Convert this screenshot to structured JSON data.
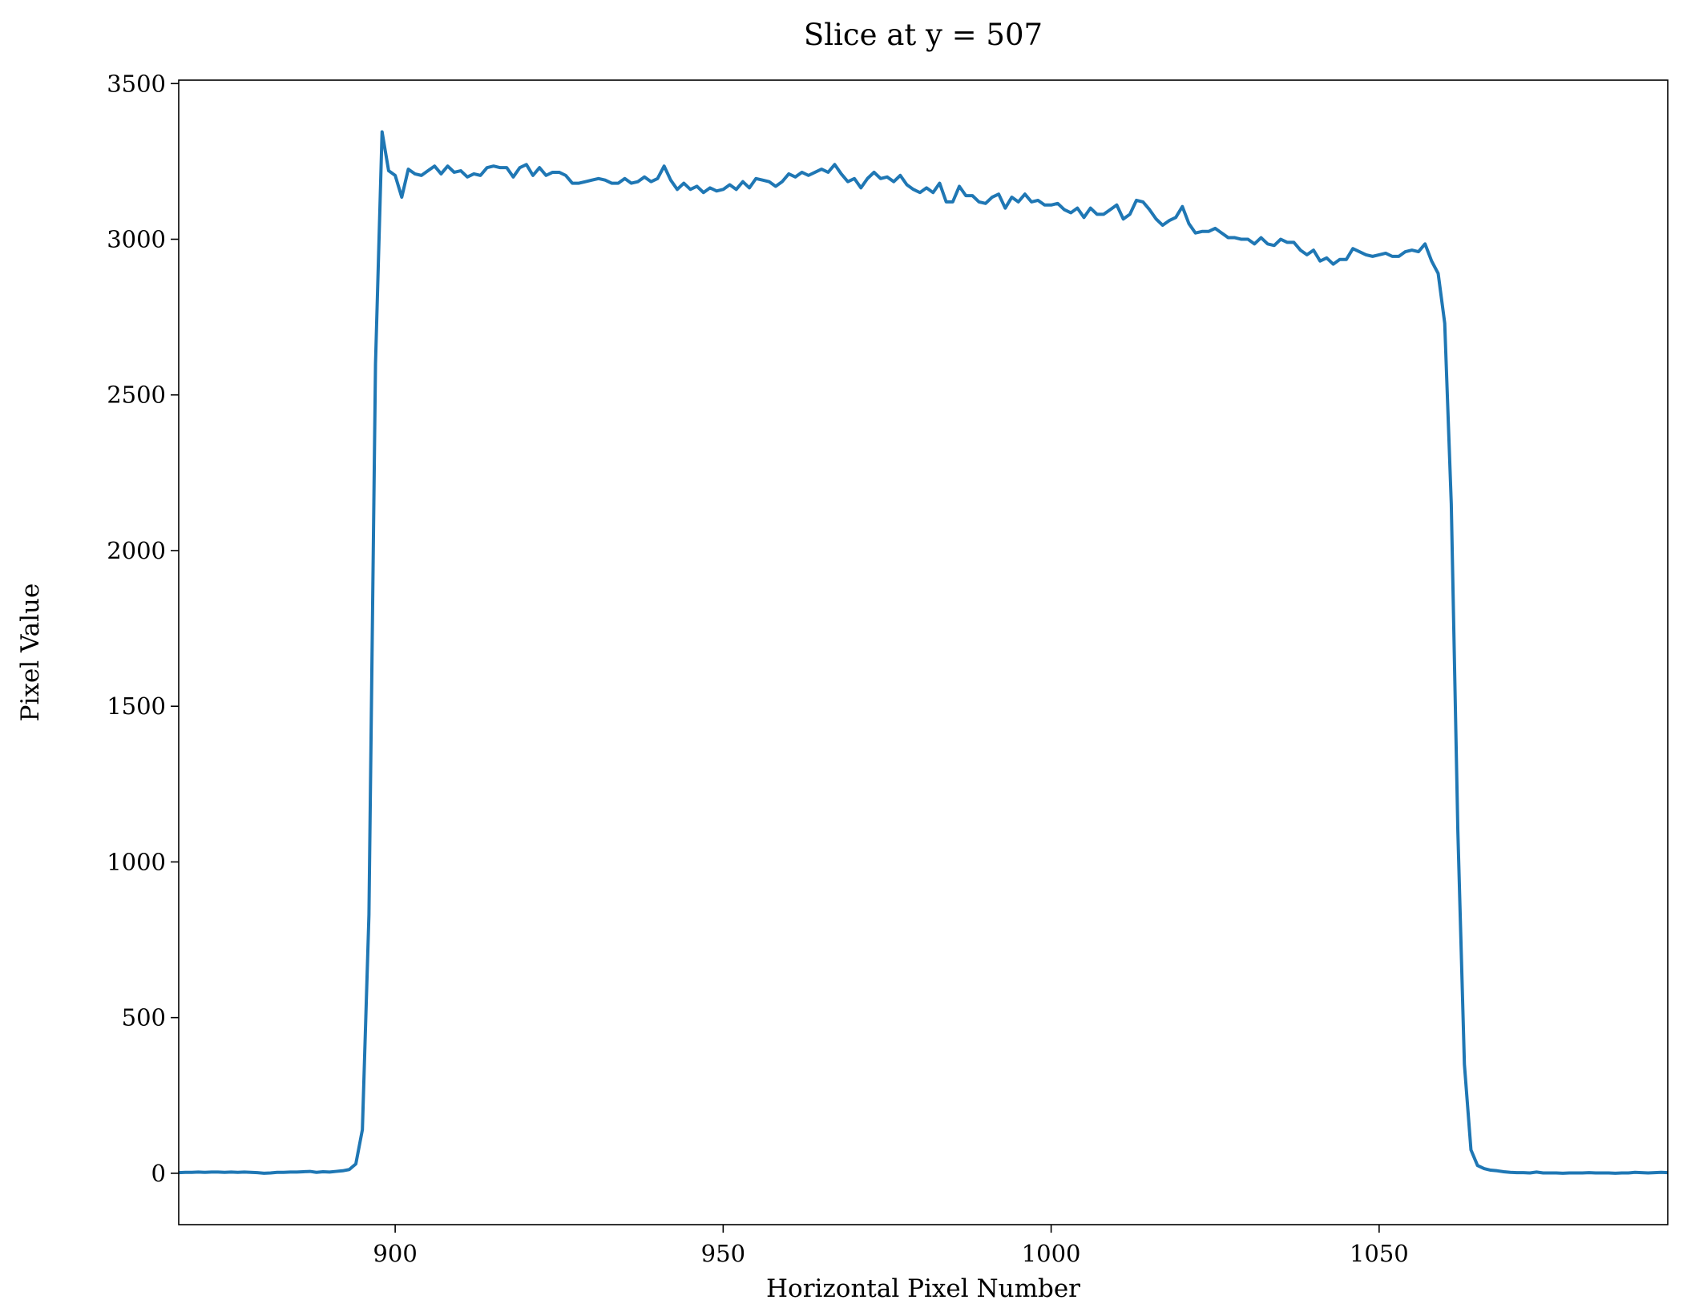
{
  "chart_data": {
    "type": "line",
    "title": "Slice at y = 507",
    "x_label": "Horizontal Pixel Number",
    "y_label": "Pixel Value",
    "color": "#1f77b4",
    "x": [
      867,
      868,
      869,
      870,
      871,
      872,
      873,
      874,
      875,
      876,
      877,
      878,
      879,
      880,
      881,
      882,
      883,
      884,
      885,
      886,
      887,
      888,
      889,
      890,
      891,
      892,
      893,
      894,
      895,
      896,
      897,
      898,
      899,
      900,
      901,
      902,
      903,
      904,
      905,
      906,
      907,
      908,
      909,
      910,
      911,
      912,
      913,
      914,
      915,
      916,
      917,
      918,
      919,
      920,
      921,
      922,
      923,
      924,
      925,
      926,
      927,
      928,
      929,
      930,
      931,
      932,
      933,
      934,
      935,
      936,
      937,
      938,
      939,
      940,
      941,
      942,
      943,
      944,
      945,
      946,
      947,
      948,
      949,
      950,
      951,
      952,
      953,
      954,
      955,
      956,
      957,
      958,
      959,
      960,
      961,
      962,
      963,
      964,
      965,
      966,
      967,
      968,
      969,
      970,
      971,
      972,
      973,
      974,
      975,
      976,
      977,
      978,
      979,
      980,
      981,
      982,
      983,
      984,
      985,
      986,
      987,
      988,
      989,
      990,
      991,
      992,
      993,
      994,
      995,
      996,
      997,
      998,
      999,
      1000,
      1001,
      1002,
      1003,
      1004,
      1005,
      1006,
      1007,
      1008,
      1009,
      1010,
      1011,
      1012,
      1013,
      1014,
      1015,
      1016,
      1017,
      1018,
      1019,
      1020,
      1021,
      1022,
      1023,
      1024,
      1025,
      1026,
      1027,
      1028,
      1029,
      1030,
      1031,
      1032,
      1033,
      1034,
      1035,
      1036,
      1037,
      1038,
      1039,
      1040,
      1041,
      1042,
      1043,
      1044,
      1045,
      1046,
      1047,
      1048,
      1049,
      1050,
      1051,
      1052,
      1053,
      1054,
      1055,
      1056,
      1057,
      1058,
      1059,
      1060,
      1061,
      1062,
      1063,
      1064,
      1065,
      1066,
      1067,
      1068,
      1069,
      1070,
      1071,
      1072,
      1073,
      1074,
      1075,
      1076,
      1077,
      1078,
      1079,
      1080,
      1081,
      1082,
      1083,
      1084,
      1085,
      1086,
      1087,
      1088,
      1089,
      1090,
      1091,
      1092,
      1093,
      1094
    ],
    "values": [
      2,
      3,
      3,
      4,
      3,
      4,
      4,
      3,
      4,
      3,
      4,
      3,
      2,
      0,
      1,
      3,
      3,
      4,
      4,
      5,
      6,
      3,
      5,
      4,
      6,
      8,
      12,
      30,
      140,
      830,
      2600,
      3345,
      3220,
      3205,
      3135,
      3225,
      3210,
      3205,
      3220,
      3235,
      3210,
      3235,
      3215,
      3220,
      3200,
      3210,
      3205,
      3230,
      3235,
      3230,
      3230,
      3200,
      3230,
      3240,
      3205,
      3230,
      3205,
      3215,
      3215,
      3205,
      3180,
      3180,
      3185,
      3190,
      3195,
      3190,
      3180,
      3180,
      3195,
      3180,
      3185,
      3200,
      3185,
      3195,
      3235,
      3190,
      3160,
      3180,
      3160,
      3170,
      3150,
      3165,
      3155,
      3160,
      3175,
      3160,
      3185,
      3165,
      3195,
      3190,
      3185,
      3170,
      3185,
      3210,
      3200,
      3215,
      3205,
      3215,
      3225,
      3215,
      3240,
      3210,
      3185,
      3195,
      3165,
      3195,
      3215,
      3195,
      3200,
      3185,
      3205,
      3175,
      3160,
      3150,
      3165,
      3150,
      3180,
      3120,
      3120,
      3170,
      3140,
      3140,
      3120,
      3115,
      3135,
      3145,
      3100,
      3135,
      3120,
      3145,
      3120,
      3125,
      3110,
      3110,
      3115,
      3095,
      3085,
      3100,
      3070,
      3100,
      3080,
      3080,
      3095,
      3110,
      3065,
      3080,
      3125,
      3120,
      3095,
      3065,
      3045,
      3060,
      3070,
      3105,
      3050,
      3020,
      3025,
      3025,
      3035,
      3020,
      3005,
      3005,
      3000,
      3000,
      2985,
      3005,
      2985,
      2980,
      3000,
      2990,
      2990,
      2965,
      2950,
      2965,
      2930,
      2940,
      2920,
      2935,
      2935,
      2970,
      2960,
      2950,
      2945,
      2950,
      2955,
      2945,
      2945,
      2960,
      2965,
      2960,
      2985,
      2930,
      2890,
      2730,
      2150,
      1100,
      350,
      75,
      25,
      15,
      10,
      8,
      5,
      3,
      2,
      2,
      1,
      4,
      1,
      1,
      1,
      0,
      1,
      1,
      1,
      2,
      1,
      1,
      1,
      0,
      1,
      1,
      3,
      2,
      1,
      2,
      3,
      2
    ],
    "xlim": [
      867,
      1094
    ],
    "ylim": [
      -165,
      3511
    ],
    "xticks": [
      900,
      950,
      1000,
      1050
    ],
    "yticks": [
      0,
      500,
      1000,
      1500,
      2000,
      2500,
      3000,
      3500
    ]
  }
}
